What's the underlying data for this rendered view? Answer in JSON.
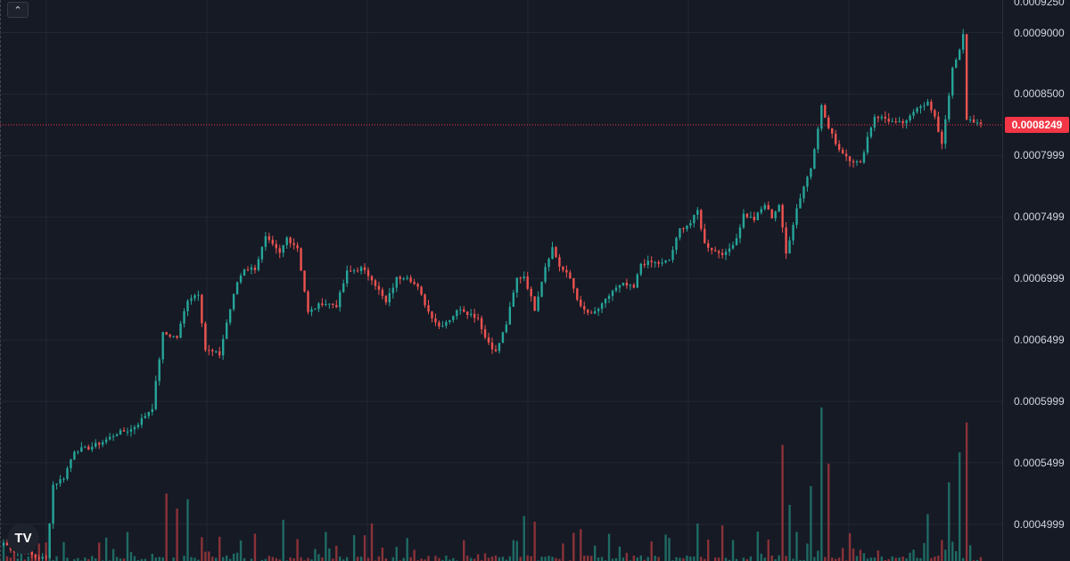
{
  "colors": {
    "background": "#161a25",
    "grid": "#232733",
    "up": "#26a69a",
    "down": "#ef5350",
    "up_volume": "#1e6b64",
    "down_volume": "#8a3238",
    "last_price": "#f23645",
    "text": "#d1d4dc"
  },
  "ui": {
    "collapse_icon": "chevron-up-icon",
    "logo_text": "TV"
  },
  "chart_data": {
    "type": "candlestick",
    "title": "",
    "xlabel": "",
    "ylabel": "",
    "ylim": [
      0.00047,
      0.0009265
    ],
    "grid": true,
    "price_axis": {
      "top_partial_label": "0.0009250",
      "tick_labels": [
        "0.0009000",
        "0.0008500",
        "0.0007999",
        "0.0007499",
        "0.0006999",
        "0.0006499",
        "0.0005999",
        "0.0005499",
        "0.0004999"
      ],
      "tick_values": [
        0.0009,
        0.00085,
        0.0007999,
        0.0007499,
        0.0006999,
        0.0006499,
        0.0005999,
        0.0005499,
        0.0004999
      ]
    },
    "last_price": {
      "label": "0.0008249",
      "value": 0.0008249
    },
    "close_waypoints": [
      [
        0,
        0.000485
      ],
      [
        3,
        0.000478
      ],
      [
        6,
        0.000478
      ],
      [
        9,
        0.000473
      ],
      [
        12,
        0.000472
      ],
      [
        14,
        0.000532
      ],
      [
        17,
        0.000538
      ],
      [
        20,
        0.00056
      ],
      [
        24,
        0.000562
      ],
      [
        28,
        0.000567
      ],
      [
        32,
        0.000574
      ],
      [
        36,
        0.000577
      ],
      [
        38,
        0.000582
      ],
      [
        42,
        0.000595
      ],
      [
        45,
        0.000655
      ],
      [
        49,
        0.000652
      ],
      [
        52,
        0.000683
      ],
      [
        55,
        0.000688
      ],
      [
        57,
        0.000642
      ],
      [
        61,
        0.000638
      ],
      [
        63,
        0.000664
      ],
      [
        66,
        0.000697
      ],
      [
        68,
        0.000708
      ],
      [
        71,
        0.000708
      ],
      [
        74,
        0.000733
      ],
      [
        78,
        0.00072
      ],
      [
        80,
        0.000733
      ],
      [
        83,
        0.000725
      ],
      [
        86,
        0.000672
      ],
      [
        90,
        0.00068
      ],
      [
        94,
        0.000678
      ],
      [
        97,
        0.000705
      ],
      [
        101,
        0.000708
      ],
      [
        104,
        0.0007
      ],
      [
        108,
        0.00068
      ],
      [
        111,
        0.0007
      ],
      [
        114,
        0.000702
      ],
      [
        117,
        0.000692
      ],
      [
        120,
        0.000673
      ],
      [
        123,
        0.000661
      ],
      [
        126,
        0.000667
      ],
      [
        129,
        0.000676
      ],
      [
        131,
        0.000672
      ],
      [
        134,
        0.000668
      ],
      [
        136,
        0.000652
      ],
      [
        139,
        0.00064
      ],
      [
        142,
        0.000663
      ],
      [
        145,
        0.0007
      ],
      [
        147,
        0.000702
      ],
      [
        150,
        0.000675
      ],
      [
        153,
        0.00071
      ],
      [
        155,
        0.000725
      ],
      [
        157,
        0.00071
      ],
      [
        160,
        0.0007
      ],
      [
        163,
        0.000676
      ],
      [
        166,
        0.00067
      ],
      [
        169,
        0.000678
      ],
      [
        172,
        0.00069
      ],
      [
        175,
        0.000695
      ],
      [
        178,
        0.000692
      ],
      [
        180,
        0.000712
      ],
      [
        183,
        0.000713
      ],
      [
        186,
        0.000712
      ],
      [
        188,
        0.000715
      ],
      [
        191,
        0.00074
      ],
      [
        194,
        0.000745
      ],
      [
        196,
        0.000755
      ],
      [
        198,
        0.000728
      ],
      [
        201,
        0.000722
      ],
      [
        204,
        0.00072
      ],
      [
        207,
        0.000733
      ],
      [
        209,
        0.000752
      ],
      [
        212,
        0.000748
      ],
      [
        215,
        0.00076
      ],
      [
        217,
        0.00075
      ],
      [
        219,
        0.00076
      ],
      [
        221,
        0.00072
      ],
      [
        224,
        0.000757
      ],
      [
        226,
        0.000775
      ],
      [
        228,
        0.00079
      ],
      [
        231,
        0.00084
      ],
      [
        233,
        0.000822
      ],
      [
        236,
        0.000805
      ],
      [
        239,
        0.000797
      ],
      [
        242,
        0.000793
      ],
      [
        244,
        0.000815
      ],
      [
        246,
        0.000832
      ],
      [
        249,
        0.00083
      ],
      [
        252,
        0.000826
      ],
      [
        255,
        0.000827
      ],
      [
        258,
        0.00084
      ],
      [
        261,
        0.000843
      ],
      [
        263,
        0.00083
      ],
      [
        265,
        0.00081
      ],
      [
        268,
        0.00087
      ],
      [
        270,
        0.000885
      ],
      [
        271,
        0.000898
      ],
      [
        272,
        0.00083
      ],
      [
        274,
        0.000828
      ],
      [
        276,
        0.000824
      ]
    ],
    "volume_spikes": [
      [
        46,
        0.36
      ],
      [
        49,
        0.28
      ],
      [
        52,
        0.33
      ],
      [
        79,
        0.22
      ],
      [
        104,
        0.2
      ],
      [
        147,
        0.24
      ],
      [
        150,
        0.21
      ],
      [
        163,
        0.17
      ],
      [
        196,
        0.2
      ],
      [
        203,
        0.19
      ],
      [
        220,
        0.62
      ],
      [
        222,
        0.3
      ],
      [
        228,
        0.4
      ],
      [
        231,
        0.82
      ],
      [
        233,
        0.52
      ],
      [
        261,
        0.25
      ],
      [
        267,
        0.42
      ],
      [
        270,
        0.58
      ],
      [
        272,
        0.74
      ]
    ]
  }
}
